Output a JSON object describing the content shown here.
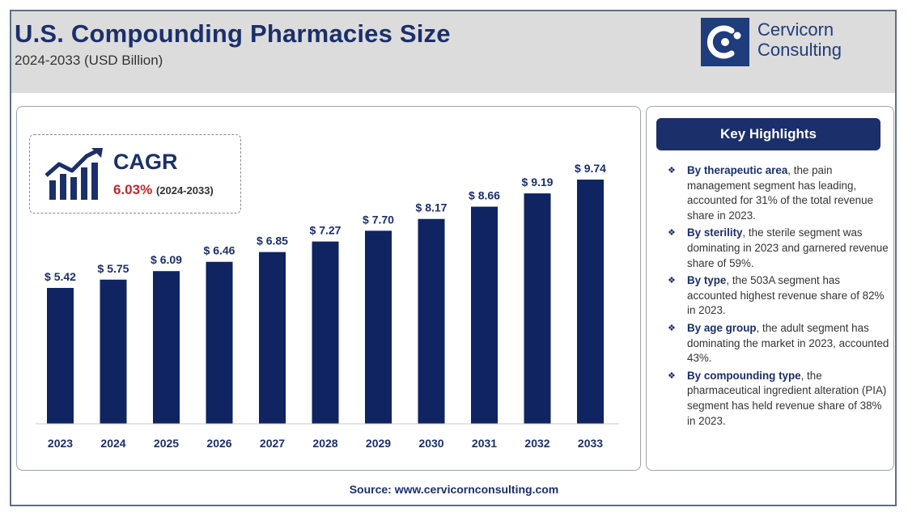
{
  "header": {
    "title": "U.S. Compounding Pharmacies Size",
    "subtitle": "2024-2033 (USD Billion)",
    "logo_line1": "Cervicorn",
    "logo_line2": "Consulting"
  },
  "cagr": {
    "label": "CAGR",
    "value": "6.03%",
    "period": "(2024-2033)"
  },
  "highlights": {
    "title": "Key Highlights",
    "items": [
      {
        "bold": "By therapeutic area",
        "text": ", the pain management segment has leading, accounted for 31% of the total revenue share in 2023."
      },
      {
        "bold": "By sterility",
        "text": ", the sterile segment was dominating in 2023 and garnered revenue share of 59%."
      },
      {
        "bold": "By type",
        "text": ", the 503A segment has accounted highest revenue share of 82% in 2023."
      },
      {
        "bold": "By age group",
        "text": ", the adult segment has dominating the market in 2023, accounted 43%."
      },
      {
        "bold": "By compounding type",
        "text": ", the pharmaceutical ingredient alteration (PIA) segment has held revenue share of 38% in 2023."
      }
    ]
  },
  "source": "Source: www.cervicornconsulting.com",
  "colors": {
    "bar": "#0f2460",
    "accent_red": "#c0272d",
    "brand": "#1b2f6b"
  },
  "chart_data": {
    "type": "bar",
    "title": "U.S. Compounding Pharmacies Size",
    "subtitle": "2024-2033 (USD Billion)",
    "categories": [
      "2023",
      "2024",
      "2025",
      "2026",
      "2027",
      "2028",
      "2029",
      "2030",
      "2031",
      "2032",
      "2033"
    ],
    "values": [
      5.42,
      5.75,
      6.09,
      6.46,
      6.85,
      7.27,
      7.7,
      8.17,
      8.66,
      9.19,
      9.74
    ],
    "data_labels": [
      "$ 5.42",
      "$ 5.75",
      "$ 6.09",
      "$ 6.46",
      "$ 6.85",
      "$ 7.27",
      "$ 7.70",
      "$ 8.17",
      "$ 8.66",
      "$ 9.19",
      "$ 9.74"
    ],
    "xlabel": "",
    "ylabel": "",
    "grid": false
  }
}
